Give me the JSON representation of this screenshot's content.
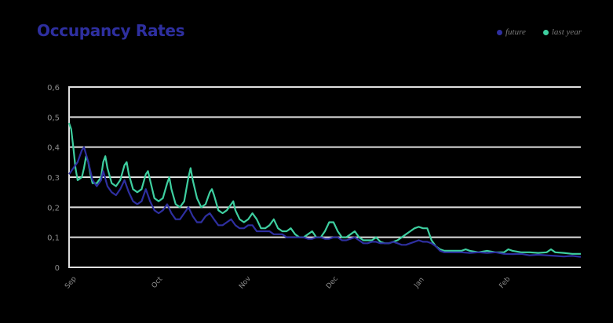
{
  "title": "Occupancy Rates",
  "legend": [
    {
      "label": "future",
      "color": "#2e2fa0"
    },
    {
      "label": "last year",
      "color": "#3ecfa0"
    }
  ],
  "chart_data": {
    "type": "line",
    "title": "Occupancy Rates",
    "xlabel": "",
    "ylabel": "",
    "ylim": [
      0,
      0.6
    ],
    "yticks": [
      "0",
      "0,1",
      "0,2",
      "0,3",
      "0,4",
      "0,5",
      "0,6"
    ],
    "xticks": [
      "Sep",
      "Oct",
      "Nov",
      "Dec",
      "Jan",
      "Feb"
    ],
    "grid": true,
    "legend_position": "top-right",
    "x_day_range": [
      0,
      180
    ],
    "series": [
      {
        "name": "future",
        "color": "#2e2fa0",
        "points": [
          [
            0,
            0.31
          ],
          [
            2,
            0.33
          ],
          [
            4,
            0.35
          ],
          [
            6,
            0.39
          ],
          [
            7,
            0.4
          ],
          [
            9,
            0.35
          ],
          [
            11,
            0.29
          ],
          [
            13,
            0.27
          ],
          [
            15,
            0.29
          ],
          [
            16,
            0.32
          ],
          [
            18,
            0.27
          ],
          [
            20,
            0.25
          ],
          [
            22,
            0.24
          ],
          [
            24,
            0.26
          ],
          [
            26,
            0.29
          ],
          [
            28,
            0.25
          ],
          [
            30,
            0.22
          ],
          [
            32,
            0.21
          ],
          [
            34,
            0.22
          ],
          [
            36,
            0.26
          ],
          [
            38,
            0.22
          ],
          [
            40,
            0.19
          ],
          [
            42,
            0.18
          ],
          [
            44,
            0.19
          ],
          [
            46,
            0.21
          ],
          [
            48,
            0.18
          ],
          [
            50,
            0.16
          ],
          [
            52,
            0.16
          ],
          [
            54,
            0.18
          ],
          [
            56,
            0.2
          ],
          [
            58,
            0.17
          ],
          [
            60,
            0.15
          ],
          [
            62,
            0.15
          ],
          [
            64,
            0.17
          ],
          [
            66,
            0.18
          ],
          [
            68,
            0.16
          ],
          [
            70,
            0.14
          ],
          [
            72,
            0.14
          ],
          [
            74,
            0.15
          ],
          [
            76,
            0.16
          ],
          [
            78,
            0.14
          ],
          [
            80,
            0.13
          ],
          [
            82,
            0.13
          ],
          [
            84,
            0.14
          ],
          [
            86,
            0.14
          ],
          [
            88,
            0.12
          ],
          [
            90,
            0.12
          ],
          [
            92,
            0.12
          ],
          [
            94,
            0.12
          ],
          [
            96,
            0.11
          ],
          [
            98,
            0.11
          ],
          [
            100,
            0.11
          ],
          [
            102,
            0.1
          ],
          [
            104,
            0.1
          ],
          [
            106,
            0.1
          ],
          [
            108,
            0.1
          ],
          [
            110,
            0.1
          ],
          [
            112,
            0.095
          ],
          [
            114,
            0.095
          ],
          [
            116,
            0.1
          ],
          [
            118,
            0.1
          ],
          [
            120,
            0.095
          ],
          [
            122,
            0.095
          ],
          [
            124,
            0.1
          ],
          [
            126,
            0.1
          ],
          [
            128,
            0.09
          ],
          [
            130,
            0.09
          ],
          [
            132,
            0.095
          ],
          [
            134,
            0.1
          ],
          [
            136,
            0.09
          ],
          [
            138,
            0.08
          ],
          [
            140,
            0.08
          ],
          [
            142,
            0.085
          ],
          [
            144,
            0.085
          ],
          [
            146,
            0.08
          ],
          [
            148,
            0.08
          ],
          [
            150,
            0.08
          ],
          [
            152,
            0.085
          ],
          [
            154,
            0.08
          ],
          [
            156,
            0.075
          ],
          [
            158,
            0.075
          ],
          [
            160,
            0.08
          ],
          [
            162,
            0.085
          ],
          [
            164,
            0.09
          ],
          [
            166,
            0.085
          ],
          [
            168,
            0.085
          ],
          [
            170,
            0.08
          ],
          [
            172,
            0.07
          ],
          [
            174,
            0.055
          ],
          [
            176,
            0.05
          ],
          [
            180,
            0.05
          ],
          [
            184,
            0.05
          ],
          [
            188,
            0.048
          ],
          [
            192,
            0.05
          ],
          [
            196,
            0.048
          ],
          [
            200,
            0.05
          ],
          [
            204,
            0.045
          ],
          [
            208,
            0.044
          ],
          [
            212,
            0.045
          ],
          [
            216,
            0.04
          ],
          [
            220,
            0.042
          ],
          [
            224,
            0.04
          ],
          [
            228,
            0.038
          ],
          [
            232,
            0.036
          ],
          [
            236,
            0.038
          ],
          [
            240,
            0.035
          ]
        ]
      },
      {
        "name": "last year",
        "color": "#3ecfa0",
        "points": [
          [
            0,
            0.48
          ],
          [
            1,
            0.46
          ],
          [
            2,
            0.4
          ],
          [
            3,
            0.33
          ],
          [
            4,
            0.29
          ],
          [
            6,
            0.3
          ],
          [
            7,
            0.33
          ],
          [
            8,
            0.37
          ],
          [
            9,
            0.35
          ],
          [
            10,
            0.31
          ],
          [
            11,
            0.28
          ],
          [
            13,
            0.28
          ],
          [
            15,
            0.3
          ],
          [
            16,
            0.35
          ],
          [
            17,
            0.37
          ],
          [
            18,
            0.33
          ],
          [
            20,
            0.28
          ],
          [
            22,
            0.27
          ],
          [
            24,
            0.29
          ],
          [
            26,
            0.34
          ],
          [
            27,
            0.35
          ],
          [
            28,
            0.31
          ],
          [
            30,
            0.26
          ],
          [
            32,
            0.25
          ],
          [
            34,
            0.26
          ],
          [
            36,
            0.31
          ],
          [
            37,
            0.32
          ],
          [
            38,
            0.29
          ],
          [
            40,
            0.23
          ],
          [
            42,
            0.22
          ],
          [
            44,
            0.23
          ],
          [
            46,
            0.28
          ],
          [
            47,
            0.3
          ],
          [
            48,
            0.26
          ],
          [
            50,
            0.21
          ],
          [
            52,
            0.2
          ],
          [
            54,
            0.22
          ],
          [
            56,
            0.3
          ],
          [
            57,
            0.33
          ],
          [
            58,
            0.29
          ],
          [
            60,
            0.23
          ],
          [
            62,
            0.2
          ],
          [
            64,
            0.21
          ],
          [
            66,
            0.25
          ],
          [
            67,
            0.26
          ],
          [
            68,
            0.24
          ],
          [
            70,
            0.19
          ],
          [
            72,
            0.18
          ],
          [
            74,
            0.19
          ],
          [
            76,
            0.21
          ],
          [
            77,
            0.22
          ],
          [
            78,
            0.19
          ],
          [
            80,
            0.16
          ],
          [
            82,
            0.15
          ],
          [
            84,
            0.16
          ],
          [
            86,
            0.18
          ],
          [
            88,
            0.16
          ],
          [
            90,
            0.13
          ],
          [
            92,
            0.13
          ],
          [
            94,
            0.14
          ],
          [
            96,
            0.16
          ],
          [
            98,
            0.13
          ],
          [
            100,
            0.12
          ],
          [
            102,
            0.12
          ],
          [
            104,
            0.13
          ],
          [
            106,
            0.11
          ],
          [
            108,
            0.1
          ],
          [
            110,
            0.1
          ],
          [
            112,
            0.11
          ],
          [
            114,
            0.12
          ],
          [
            116,
            0.1
          ],
          [
            118,
            0.1
          ],
          [
            120,
            0.12
          ],
          [
            122,
            0.15
          ],
          [
            124,
            0.15
          ],
          [
            126,
            0.12
          ],
          [
            128,
            0.1
          ],
          [
            130,
            0.1
          ],
          [
            132,
            0.11
          ],
          [
            134,
            0.12
          ],
          [
            136,
            0.1
          ],
          [
            138,
            0.09
          ],
          [
            140,
            0.09
          ],
          [
            142,
            0.09
          ],
          [
            144,
            0.1
          ],
          [
            146,
            0.085
          ],
          [
            148,
            0.08
          ],
          [
            150,
            0.08
          ],
          [
            152,
            0.085
          ],
          [
            154,
            0.09
          ],
          [
            156,
            0.1
          ],
          [
            158,
            0.11
          ],
          [
            160,
            0.12
          ],
          [
            162,
            0.13
          ],
          [
            164,
            0.135
          ],
          [
            166,
            0.13
          ],
          [
            168,
            0.13
          ],
          [
            170,
            0.09
          ],
          [
            172,
            0.07
          ],
          [
            174,
            0.06
          ],
          [
            176,
            0.055
          ],
          [
            180,
            0.055
          ],
          [
            184,
            0.055
          ],
          [
            186,
            0.06
          ],
          [
            188,
            0.055
          ],
          [
            192,
            0.05
          ],
          [
            196,
            0.055
          ],
          [
            200,
            0.05
          ],
          [
            204,
            0.05
          ],
          [
            206,
            0.06
          ],
          [
            208,
            0.055
          ],
          [
            212,
            0.05
          ],
          [
            216,
            0.05
          ],
          [
            220,
            0.048
          ],
          [
            224,
            0.05
          ],
          [
            226,
            0.06
          ],
          [
            228,
            0.05
          ],
          [
            232,
            0.048
          ],
          [
            236,
            0.045
          ],
          [
            240,
            0.045
          ]
        ]
      }
    ]
  }
}
